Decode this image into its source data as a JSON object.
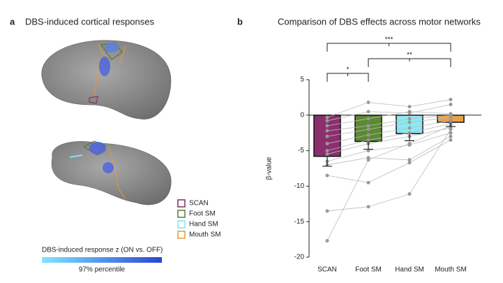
{
  "panel_a": {
    "label": "a",
    "title": "DBS-induced cortical responses",
    "legend": [
      {
        "name": "SCAN",
        "color": "#7b2d5e"
      },
      {
        "name": "Foot SM",
        "color": "#5a7a32"
      },
      {
        "name": "Hand SM",
        "color": "#7fe6f0"
      },
      {
        "name": "Mouth SM",
        "color": "#e39a3b"
      }
    ],
    "colorbar_label": "DBS-induced response z (ON vs. OFF)",
    "colorbar_note": "97% percentile"
  },
  "chart_data": {
    "type": "bar",
    "label": "b",
    "title": "Comparison of DBS effects across motor networks",
    "ylabel": "β-value",
    "categories": [
      "SCAN",
      "Foot SM",
      "Hand SM",
      "Mouth SM"
    ],
    "values": [
      -5.8,
      -3.7,
      -2.6,
      -1.0
    ],
    "errors": [
      1.4,
      1.1,
      1.0,
      0.6
    ],
    "colors": [
      "#8b2f6e",
      "#5c8a34",
      "#8ce8f2",
      "#e8a04a"
    ],
    "subjects": [
      [
        -0.3,
        1.8,
        1.2,
        2.2
      ],
      [
        -0.8,
        0.5,
        0.3,
        1.5
      ],
      [
        -1.5,
        -0.5,
        0.5,
        0.2
      ],
      [
        -2.2,
        -1.5,
        -0.5,
        0.0
      ],
      [
        -3.0,
        -2.0,
        -1.0,
        -0.3
      ],
      [
        -4.0,
        -2.8,
        -1.8,
        -0.8
      ],
      [
        -5.0,
        -3.5,
        -2.5,
        -1.2
      ],
      [
        -5.5,
        -4.0,
        -3.0,
        -1.8
      ],
      [
        -6.5,
        -5.0,
        -4.2,
        -2.5
      ],
      [
        -7.0,
        -6.0,
        -6.3,
        -3.0
      ],
      [
        -8.5,
        -9.5,
        -6.7,
        -3.5
      ],
      [
        -13.5,
        -12.9,
        -11.1,
        -2.0
      ],
      [
        -17.7,
        -6.3,
        -4.0,
        -1.5
      ]
    ],
    "annotations": [
      "***",
      "**",
      "*"
    ],
    "ylim": [
      -20,
      5
    ],
    "yticks": [
      -20,
      -15,
      -10,
      -5,
      0,
      5
    ]
  }
}
